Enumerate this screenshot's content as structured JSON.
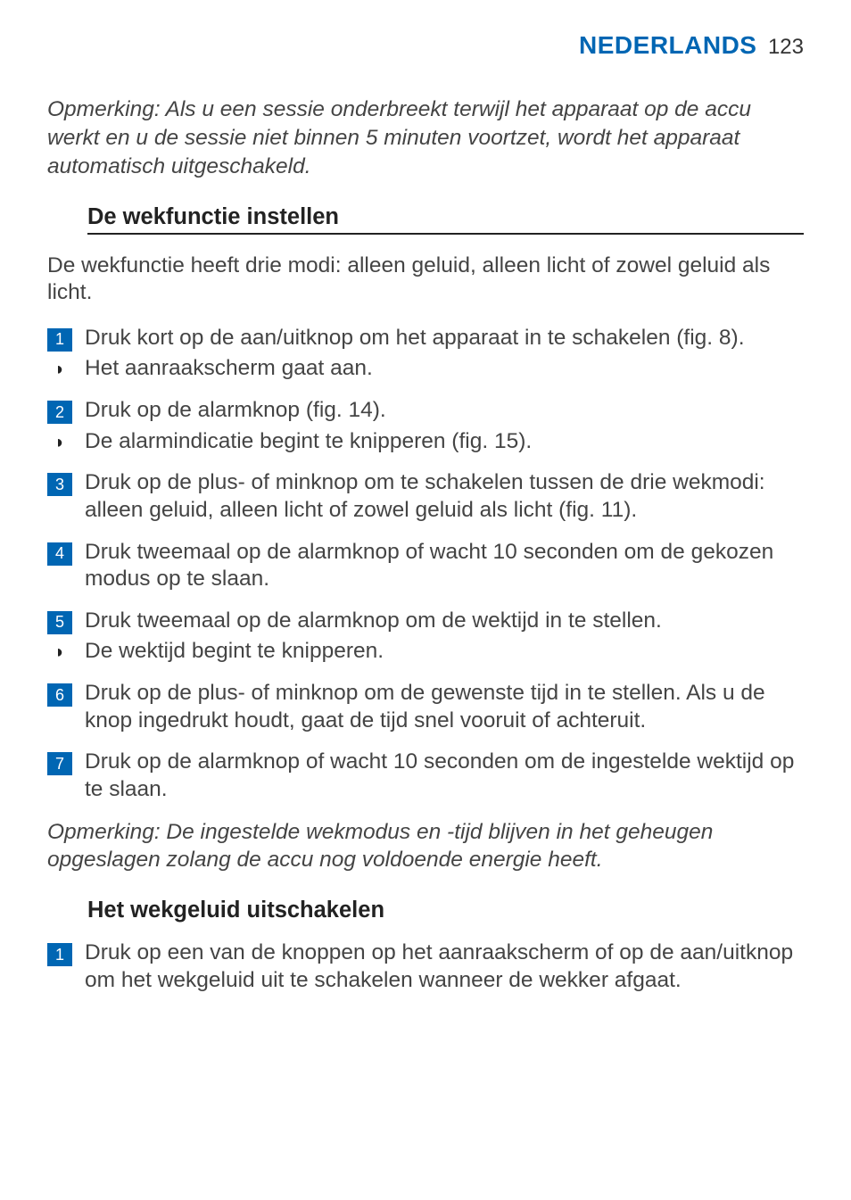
{
  "header": {
    "language": "NEDERLANDS",
    "page_number": "123",
    "language_color": "#0066b3"
  },
  "notes": {
    "top": "Opmerking: Als u een sessie onderbreekt terwijl het apparaat op de accu werkt en u de sessie niet binnen 5 minuten voortzet, wordt het apparaat automatisch uitgeschakeld.",
    "bottom": "Opmerking: De ingestelde wekmodus en -tijd blijven in het geheugen opgeslagen zolang de accu nog voldoende energie heeft."
  },
  "section1": {
    "title": "De wekfunctie instellen",
    "intro": "De wekfunctie heeft drie modi: alleen geluid, alleen licht of zowel geluid als licht.",
    "steps": [
      {
        "num": "1",
        "text": "Druk kort op de aan/uitknop om het apparaat in te schakelen (fig. 8).",
        "result": "Het aanraakscherm gaat aan."
      },
      {
        "num": "2",
        "text": "Druk op de alarmknop (fig. 14).",
        "result": "De alarmindicatie begint te knipperen (fig. 15)."
      },
      {
        "num": "3",
        "text": "Druk op de plus- of minknop om te schakelen tussen de drie wekmodi: alleen geluid, alleen licht of zowel geluid als licht (fig. 11)."
      },
      {
        "num": "4",
        "text": "Druk tweemaal op de alarmknop of wacht 10 seconden om de gekozen modus op te slaan."
      },
      {
        "num": "5",
        "text": "Druk tweemaal op de alarmknop om de wektijd in te stellen.",
        "result": "De wektijd begint te knipperen."
      },
      {
        "num": "6",
        "text": "Druk op de plus- of minknop om de gewenste tijd in te stellen. Als u de knop ingedrukt houdt, gaat de tijd snel vooruit of achteruit."
      },
      {
        "num": "7",
        "text": "Druk op de alarmknop of wacht 10 seconden om de ingestelde wektijd op te slaan."
      }
    ]
  },
  "section2": {
    "title": "Het wekgeluid uitschakelen",
    "steps": [
      {
        "num": "1",
        "text": "Druk op een van de knoppen op het aanraakscherm of op de aan/uitknop om het wekgeluid uit te schakelen wanneer de wekker afgaat."
      }
    ]
  },
  "style": {
    "step_badge_bg": "#0066b3",
    "step_badge_fg": "#ffffff",
    "body_fontsize": 24.5,
    "title_fontsize": 25.5
  }
}
